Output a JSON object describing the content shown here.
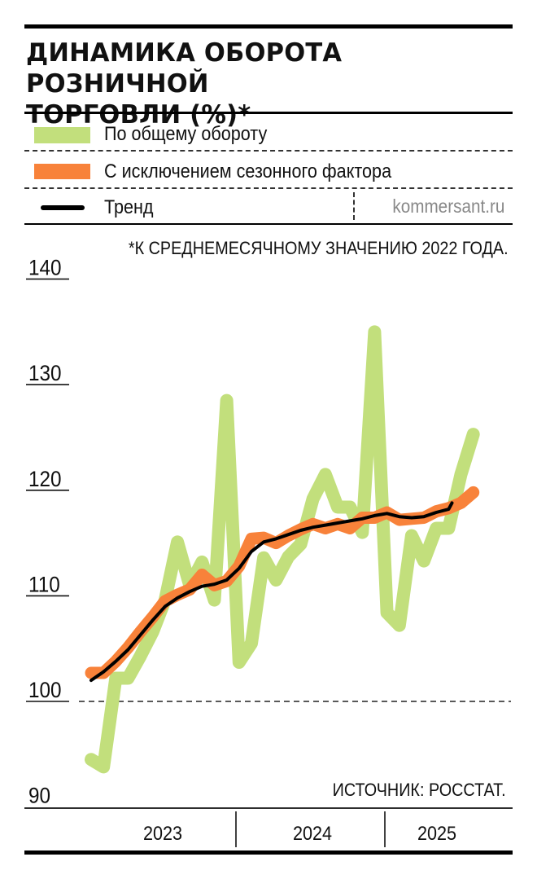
{
  "header": {
    "title_line1": "ДИНАМИКА ОБОРОТА РОЗНИЧНОЙ",
    "title_line2": "ТОРГОВЛИ (%)*"
  },
  "legend": {
    "items": [
      {
        "label": "По общему обороту",
        "color": "#c2df7c"
      },
      {
        "label": "С исключением сезонного фактора",
        "color": "#f8823a"
      },
      {
        "label": "Тренд",
        "color": "#000000"
      }
    ],
    "credit": "kommersant.ru"
  },
  "note": "*К СРЕДНЕМЕСЯЧНОМУ ЗНАЧЕНИЮ 2022 ГОДА.",
  "source": "ИСТОЧНИК: РОССТАТ.",
  "chart_data": {
    "type": "line",
    "title": "ДИНАМИКА ОБОРОТА РОЗНИЧНОЙ ТОРГОВЛИ (%)*",
    "xlabel": "",
    "ylabel": "",
    "ylim": [
      90,
      140
    ],
    "yticks": [
      140,
      130,
      120,
      110,
      100,
      90
    ],
    "reference_line": 100,
    "x_periods": [
      "2023",
      "2024",
      "2025"
    ],
    "x": [
      "2023-01",
      "2023-02",
      "2023-03",
      "2023-04",
      "2023-05",
      "2023-06",
      "2023-07",
      "2023-08",
      "2023-09",
      "2023-10",
      "2023-11",
      "2023-12",
      "2024-01",
      "2024-02",
      "2024-03",
      "2024-04",
      "2024-05",
      "2024-06",
      "2024-07",
      "2024-08",
      "2024-09",
      "2024-10",
      "2024-11",
      "2024-12",
      "2025-01",
      "2025-02",
      "2025-03",
      "2025-04",
      "2025-05",
      "2025-06",
      "2025-07",
      "2025-08"
    ],
    "series": [
      {
        "name": "По общему обороту",
        "color": "#c2df7c",
        "values": [
          94.5,
          93.8,
          102.2,
          102.2,
          104.3,
          106.6,
          109.6,
          115.1,
          111.0,
          113.2,
          109.6,
          128.5,
          103.7,
          105.5,
          113.6,
          111.5,
          113.7,
          114.9,
          119.2,
          121.5,
          118.4,
          118.4,
          116.0,
          135.0,
          108.4,
          107.2,
          115.7,
          113.3,
          116.4,
          116.4,
          121.5,
          125.3
        ]
      },
      {
        "name": "С исключением сезонного фактора",
        "color": "#f8823a",
        "values": [
          102.7,
          102.7,
          103.8,
          105.1,
          106.6,
          108.0,
          109.5,
          110.1,
          110.6,
          112.0,
          111.0,
          111.4,
          112.8,
          115.4,
          115.5,
          115.0,
          115.7,
          116.3,
          116.8,
          116.4,
          116.8,
          116.4,
          117.4,
          117.4,
          117.9,
          117.2,
          117.3,
          117.4,
          118.0,
          118.3,
          118.8,
          119.8
        ]
      },
      {
        "name": "Тренд",
        "color": "#000000",
        "values": [
          102.0,
          102.8,
          103.8,
          104.9,
          106.3,
          107.7,
          109.0,
          109.8,
          110.4,
          110.9,
          111.1,
          111.5,
          112.6,
          114.2,
          115.1,
          115.4,
          115.8,
          116.2,
          116.5,
          116.7,
          116.9,
          117.1,
          117.3,
          117.6,
          117.8,
          117.5,
          117.4,
          117.5,
          117.9,
          118.2,
          118.8,
          null
        ]
      }
    ]
  }
}
